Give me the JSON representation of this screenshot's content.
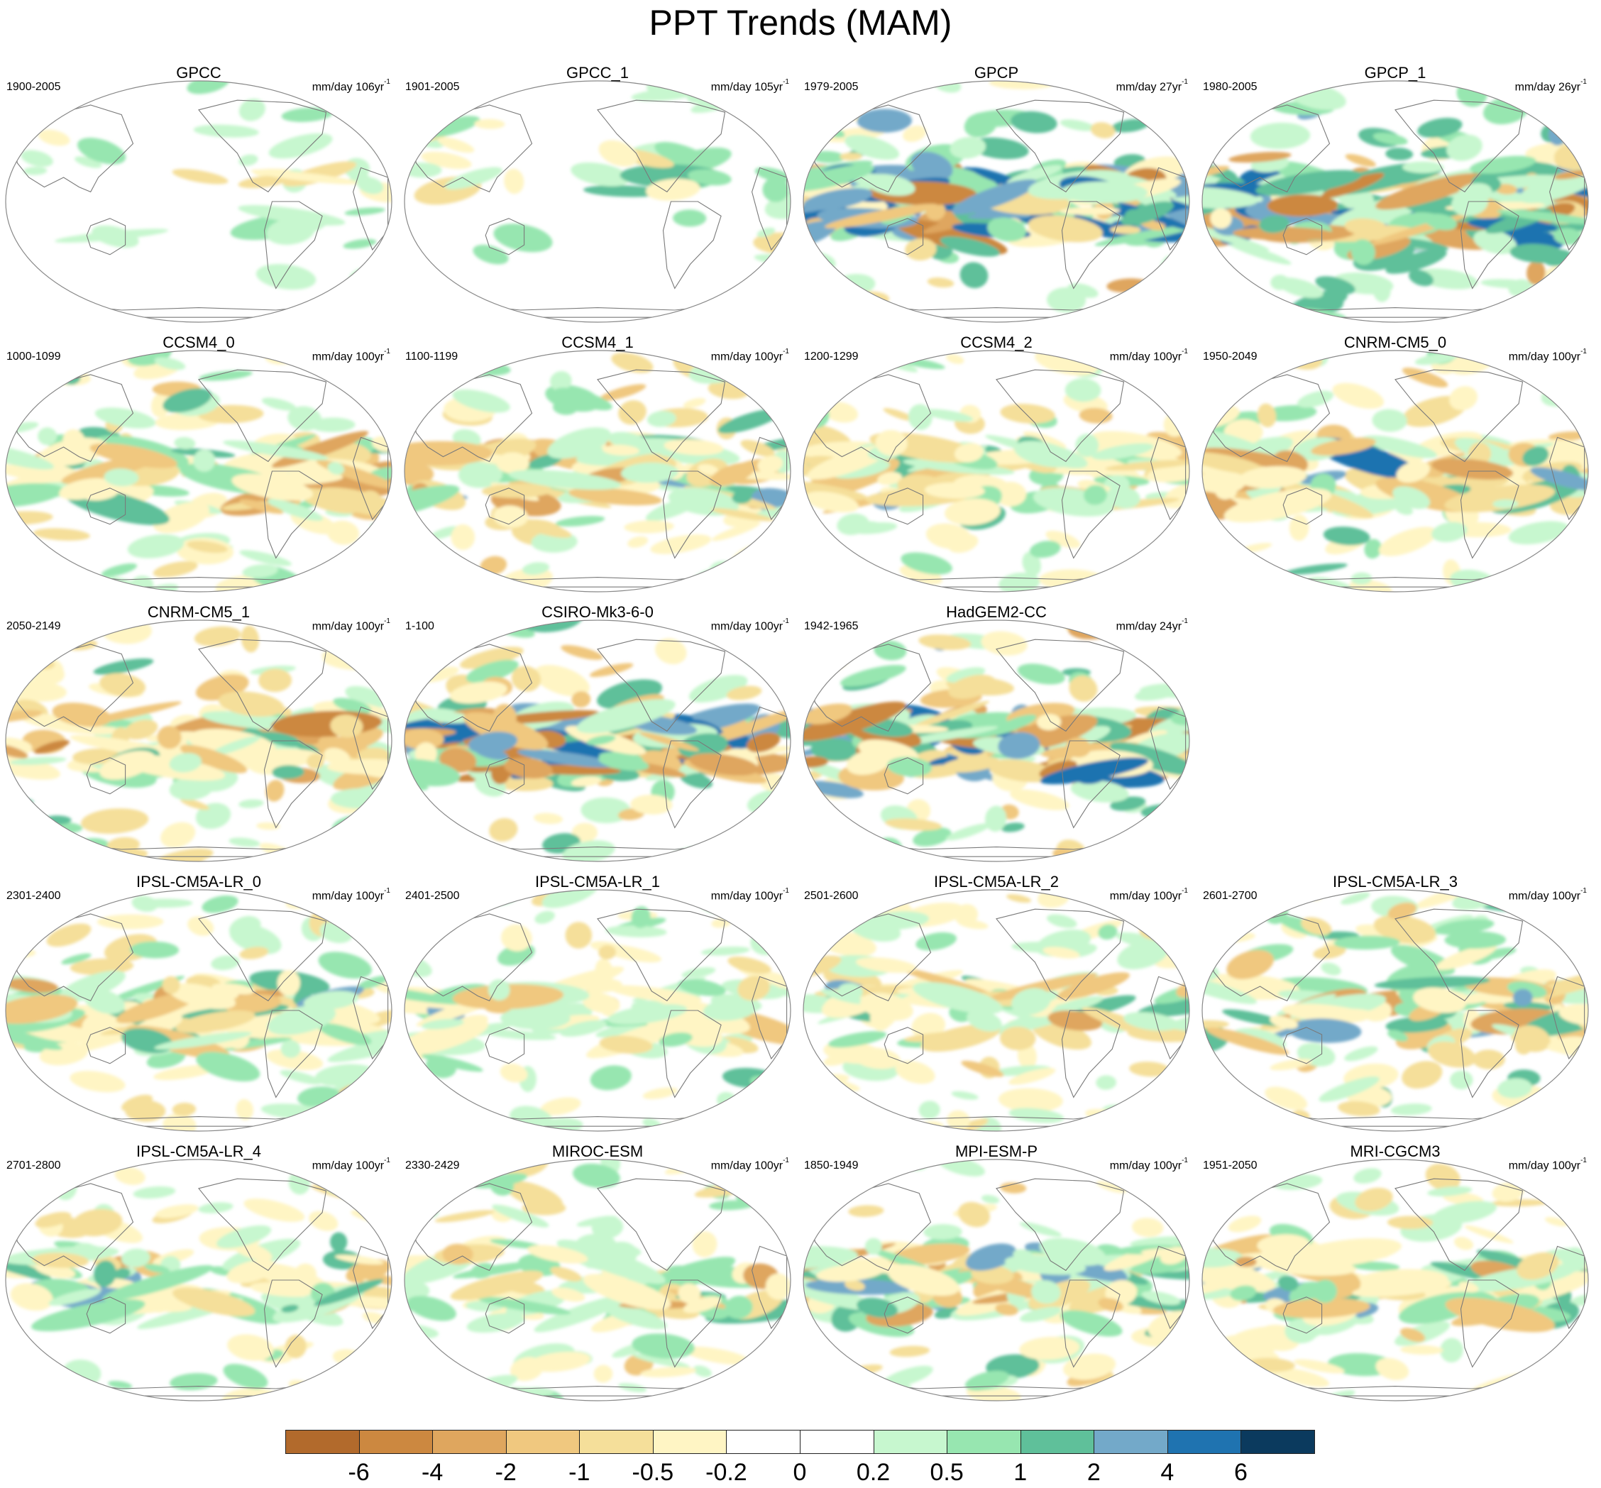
{
  "figure": {
    "title": "PPT Trends (MAM)"
  },
  "panels": [
    {
      "title": "GPCC",
      "period": "1900-2005",
      "units": "mm/day 106yr",
      "units_exp": "-1",
      "row": 0,
      "col": 0,
      "pattern": "obs_sparse"
    },
    {
      "title": "GPCC_1",
      "period": "1901-2005",
      "units": "mm/day 105yr",
      "units_exp": "-1",
      "row": 0,
      "col": 1,
      "pattern": "obs_sparse"
    },
    {
      "title": "GPCP",
      "period": "1979-2005",
      "units": "mm/day 27yr",
      "units_exp": "-1",
      "row": 0,
      "col": 2,
      "pattern": "obs_wet"
    },
    {
      "title": "GPCP_1",
      "period": "1980-2005",
      "units": "mm/day 26yr",
      "units_exp": "-1",
      "row": 0,
      "col": 3,
      "pattern": "obs_wet"
    },
    {
      "title": "CCSM4_0",
      "period": "1000-1099",
      "units": "mm/day 100yr",
      "units_exp": "-1",
      "row": 1,
      "col": 0,
      "pattern": "model_mixed"
    },
    {
      "title": "CCSM4_1",
      "period": "1100-1199",
      "units": "mm/day 100yr",
      "units_exp": "-1",
      "row": 1,
      "col": 1,
      "pattern": "model_mixed"
    },
    {
      "title": "CCSM4_2",
      "period": "1200-1299",
      "units": "mm/day 100yr",
      "units_exp": "-1",
      "row": 1,
      "col": 2,
      "pattern": "model_mixed"
    },
    {
      "title": "CNRM-CM5_0",
      "period": "1950-2049",
      "units": "mm/day 100yr",
      "units_exp": "-1",
      "row": 1,
      "col": 3,
      "pattern": "model_dry"
    },
    {
      "title": "CNRM-CM5_1",
      "period": "2050-2149",
      "units": "mm/day 100yr",
      "units_exp": "-1",
      "row": 2,
      "col": 0,
      "pattern": "model_dry"
    },
    {
      "title": "CSIRO-Mk3-6-0",
      "period": "1-100",
      "units": "mm/day 100yr",
      "units_exp": "-1",
      "row": 2,
      "col": 1,
      "pattern": "model_strong"
    },
    {
      "title": "HadGEM2-CC",
      "period": "1942-1965",
      "units": "mm/day 24yr",
      "units_exp": "-1",
      "row": 2,
      "col": 2,
      "pattern": "model_strong"
    },
    {
      "title": "IPSL-CM5A-LR_0",
      "period": "2301-2400",
      "units": "mm/day 100yr",
      "units_exp": "-1",
      "row": 3,
      "col": 0,
      "pattern": "model_mixed"
    },
    {
      "title": "IPSL-CM5A-LR_1",
      "period": "2401-2500",
      "units": "mm/day 100yr",
      "units_exp": "-1",
      "row": 3,
      "col": 1,
      "pattern": "model_weak"
    },
    {
      "title": "IPSL-CM5A-LR_2",
      "period": "2501-2600",
      "units": "mm/day 100yr",
      "units_exp": "-1",
      "row": 3,
      "col": 2,
      "pattern": "model_weak"
    },
    {
      "title": "IPSL-CM5A-LR_3",
      "period": "2601-2700",
      "units": "mm/day 100yr",
      "units_exp": "-1",
      "row": 3,
      "col": 3,
      "pattern": "model_mixed"
    },
    {
      "title": "IPSL-CM5A-LR_4",
      "period": "2701-2800",
      "units": "mm/day 100yr",
      "units_exp": "-1",
      "row": 4,
      "col": 0,
      "pattern": "model_weak"
    },
    {
      "title": "MIROC-ESM",
      "period": "2330-2429",
      "units": "mm/day 100yr",
      "units_exp": "-1",
      "row": 4,
      "col": 1,
      "pattern": "model_weak"
    },
    {
      "title": "MPI-ESM-P",
      "period": "1850-1949",
      "units": "mm/day 100yr",
      "units_exp": "-1",
      "row": 4,
      "col": 2,
      "pattern": "model_mixed"
    },
    {
      "title": "MRI-CGCM3",
      "period": "1951-2050",
      "units": "mm/day 100yr",
      "units_exp": "-1",
      "row": 4,
      "col": 3,
      "pattern": "model_mixed"
    }
  ],
  "colorbar": {
    "labels": [
      "-6",
      "-4",
      "-2",
      "-1",
      "-0.5",
      "-0.2",
      "0",
      "0.2",
      "0.5",
      "1",
      "2",
      "4",
      "6"
    ],
    "colors": [
      "#b26a2c",
      "#cc8840",
      "#dfa65e",
      "#f0c87f",
      "#f5df9a",
      "#fff5c4",
      "#ffffff",
      "#ffffff",
      "#c7f7cf",
      "#97e6b0",
      "#5fc09a",
      "#73a9c9",
      "#1f73b0",
      "#0b3a5e"
    ]
  },
  "style": {
    "coast_color": "#7a7a7a",
    "outline_color": "#888888",
    "dry_colors": [
      "#fff5c4",
      "#f5df9a",
      "#f0c87f",
      "#dfa65e",
      "#cc8840"
    ],
    "wet_colors": [
      "#c7f7cf",
      "#97e6b0",
      "#5fc09a",
      "#73a9c9",
      "#1f73b0"
    ]
  }
}
